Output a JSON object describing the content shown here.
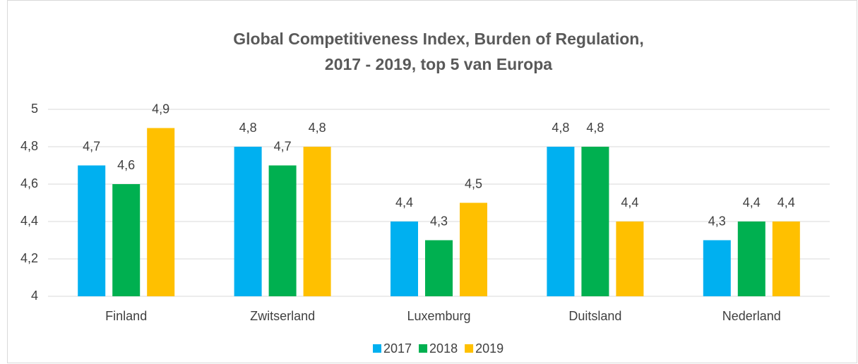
{
  "chart_data": {
    "type": "bar",
    "title": [
      "Global Competitiveness Index, Burden of Regulation,",
      "2017 - 2019, top 5 van Europa"
    ],
    "categories": [
      "Finland",
      "Zwitserland",
      "Luxemburg",
      "Duitsland",
      "Nederland"
    ],
    "series": [
      {
        "name": "2017",
        "color": "#00b0f0",
        "values": [
          4.7,
          4.8,
          4.4,
          4.8,
          4.3
        ],
        "value_labels": [
          "4,7",
          "4,8",
          "4,4",
          "4,8",
          "4,3"
        ]
      },
      {
        "name": "2018",
        "color": "#00b050",
        "values": [
          4.6,
          4.7,
          4.3,
          4.8,
          4.4
        ],
        "value_labels": [
          "4,6",
          "4,7",
          "4,3",
          "4,8",
          "4,4"
        ]
      },
      {
        "name": "2019",
        "color": "#ffc000",
        "values": [
          4.9,
          4.8,
          4.5,
          4.4,
          4.4
        ],
        "value_labels": [
          "4,9",
          "4,8",
          "4,5",
          "4,4",
          "4,4"
        ]
      }
    ],
    "ylim": [
      4,
      5
    ],
    "yticks": [
      4,
      {
        "value": 4.2,
        "label": "4,2"
      },
      {
        "value": 4.4,
        "label": "4,4"
      },
      {
        "value": 4.6,
        "label": "4,6"
      },
      {
        "value": 4.8,
        "label": "4,8"
      },
      5
    ],
    "grid": true,
    "legend": "bottom"
  }
}
